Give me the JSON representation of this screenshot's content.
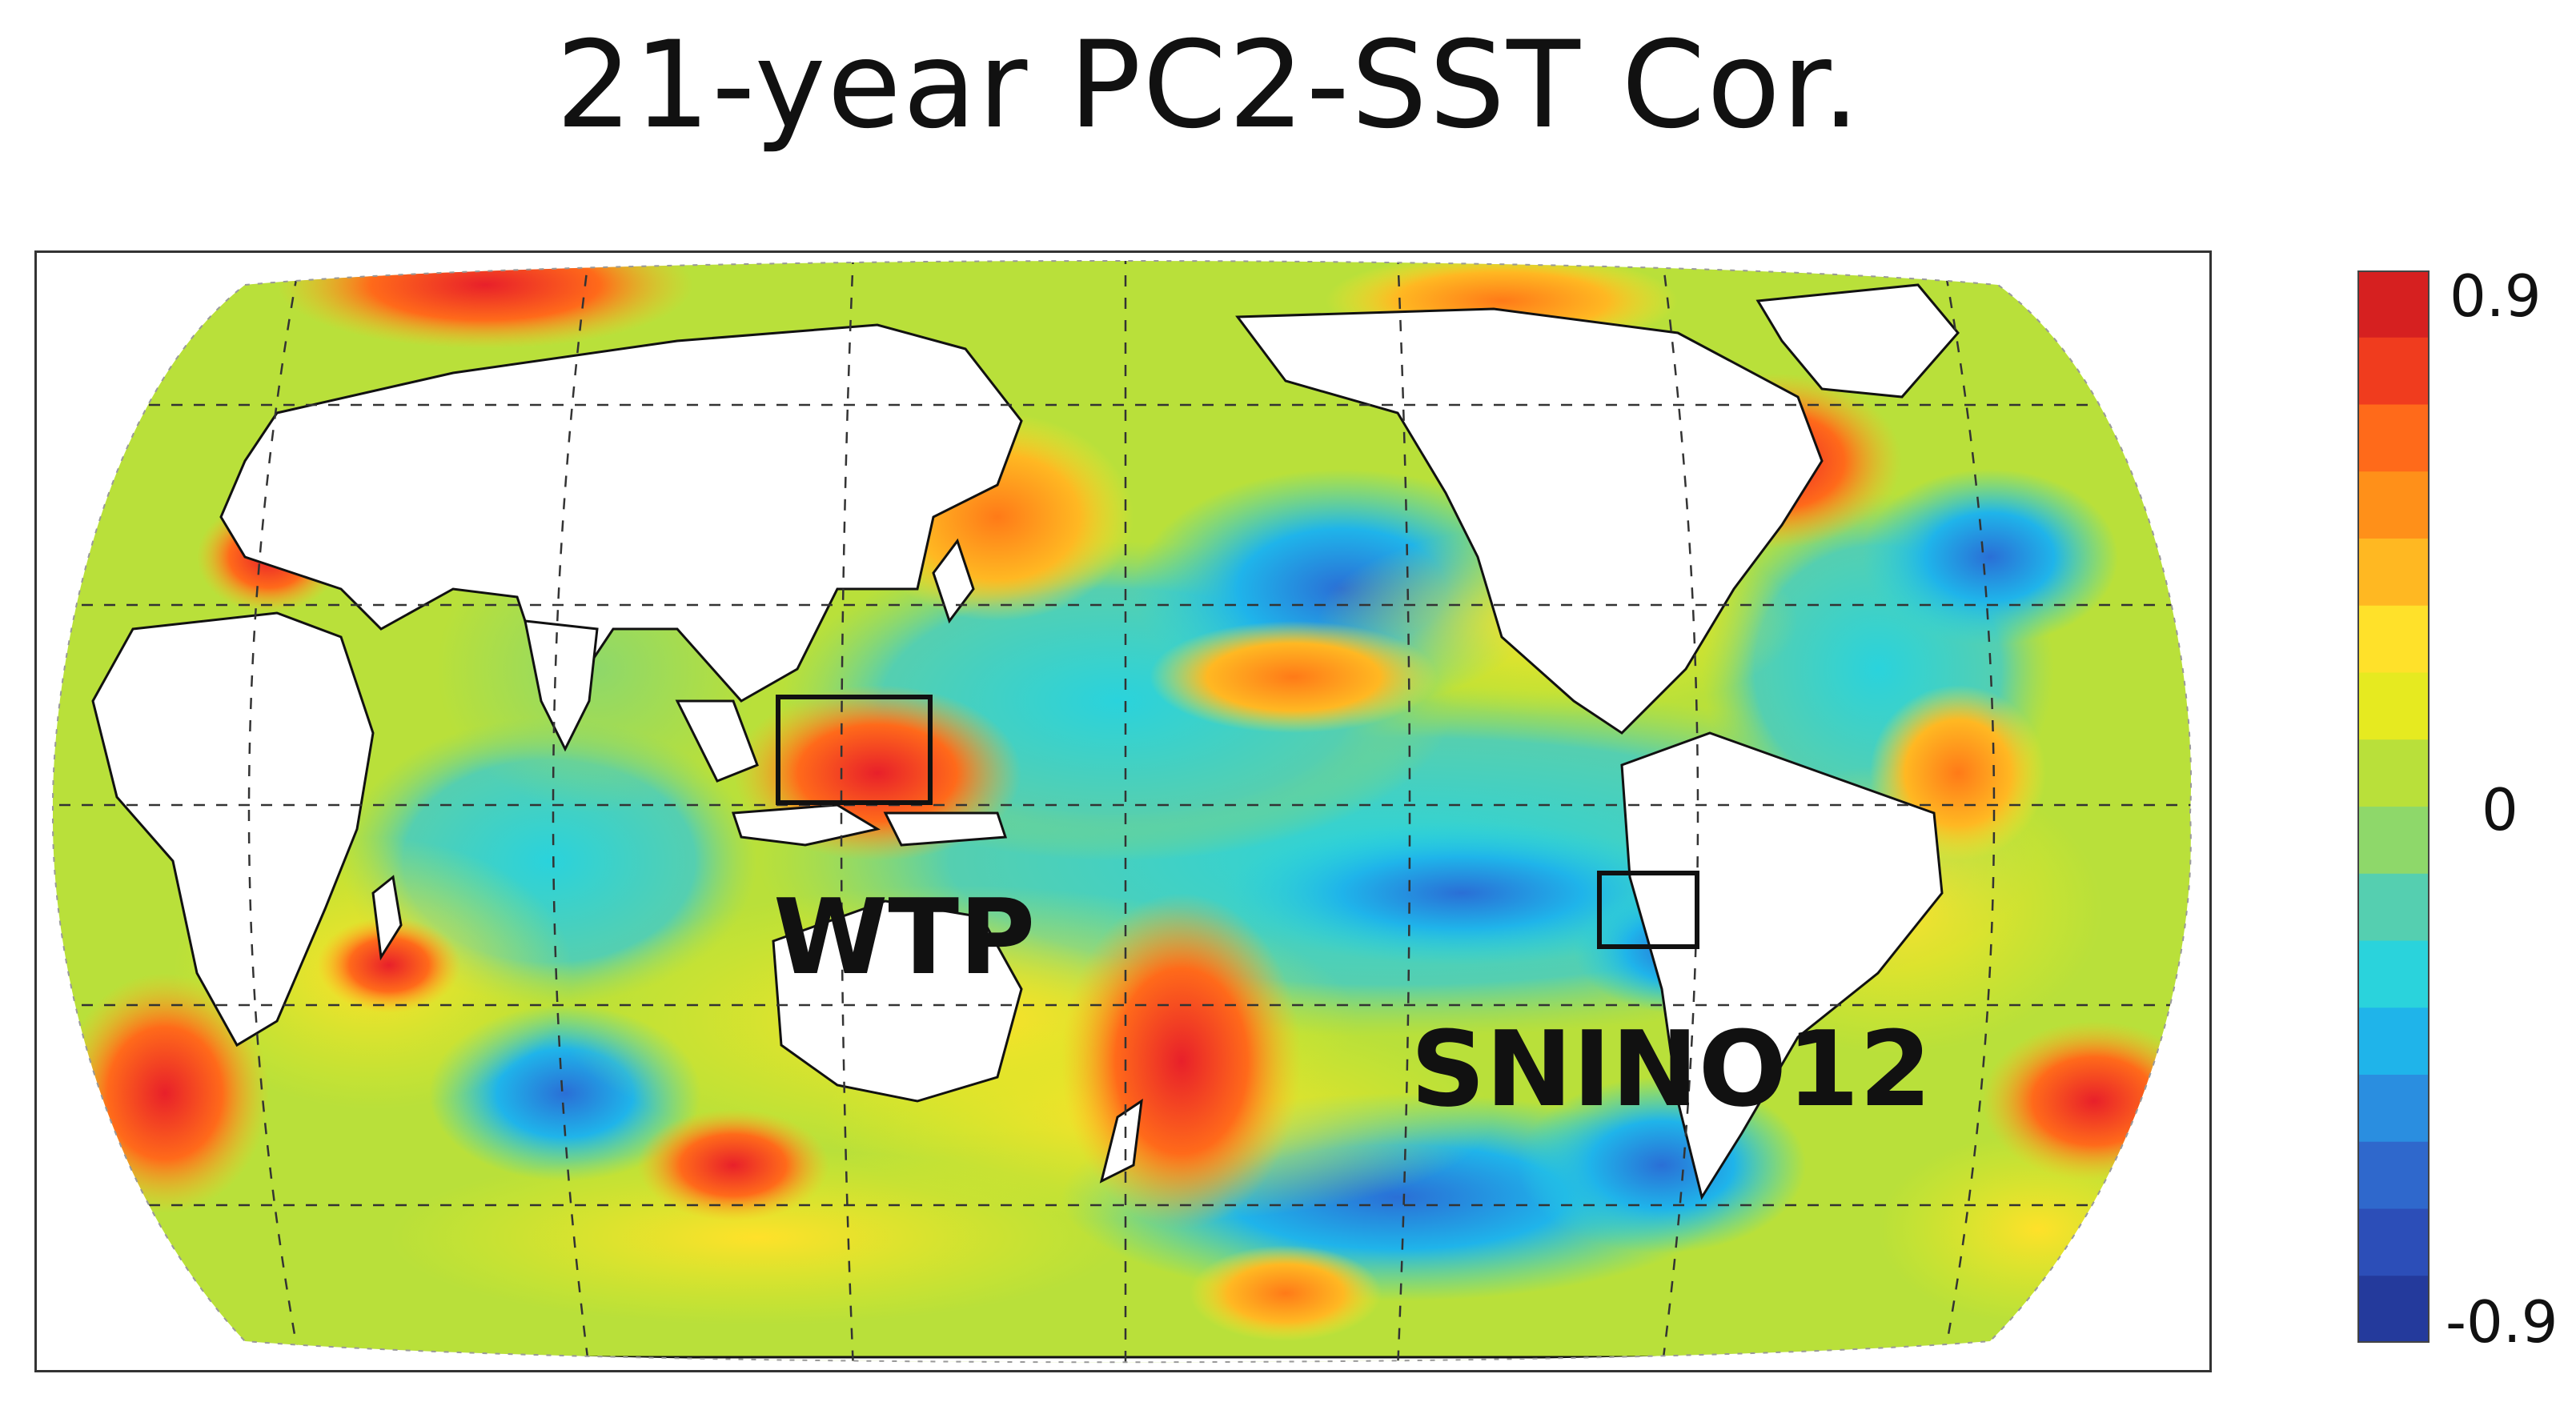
{
  "title": "21-year PC2-SST Cor.",
  "map": {
    "projection": "robinson",
    "regions": [
      {
        "label": "WTP"
      },
      {
        "label": "SNINO12"
      }
    ]
  },
  "colorbar": {
    "min": -0.9,
    "max": 0.9,
    "tick_labels": [
      "0.9",
      "0",
      "-0.9"
    ],
    "tick_values": [
      0.9,
      0,
      -0.9
    ],
    "colors": [
      "#d62020",
      "#f03c1e",
      "#ff6a1a",
      "#ff9019",
      "#ffb822",
      "#ffe12a",
      "#e6ea20",
      "#b9e03a",
      "#8ed86a",
      "#55cfb0",
      "#2ad3dc",
      "#1fb4ea",
      "#2a8ee0",
      "#2f68cc",
      "#2c4eb8",
      "#243a9c"
    ]
  },
  "palette": {
    "land": "#ffffff",
    "grid": "#333333",
    "box": "#111111"
  }
}
